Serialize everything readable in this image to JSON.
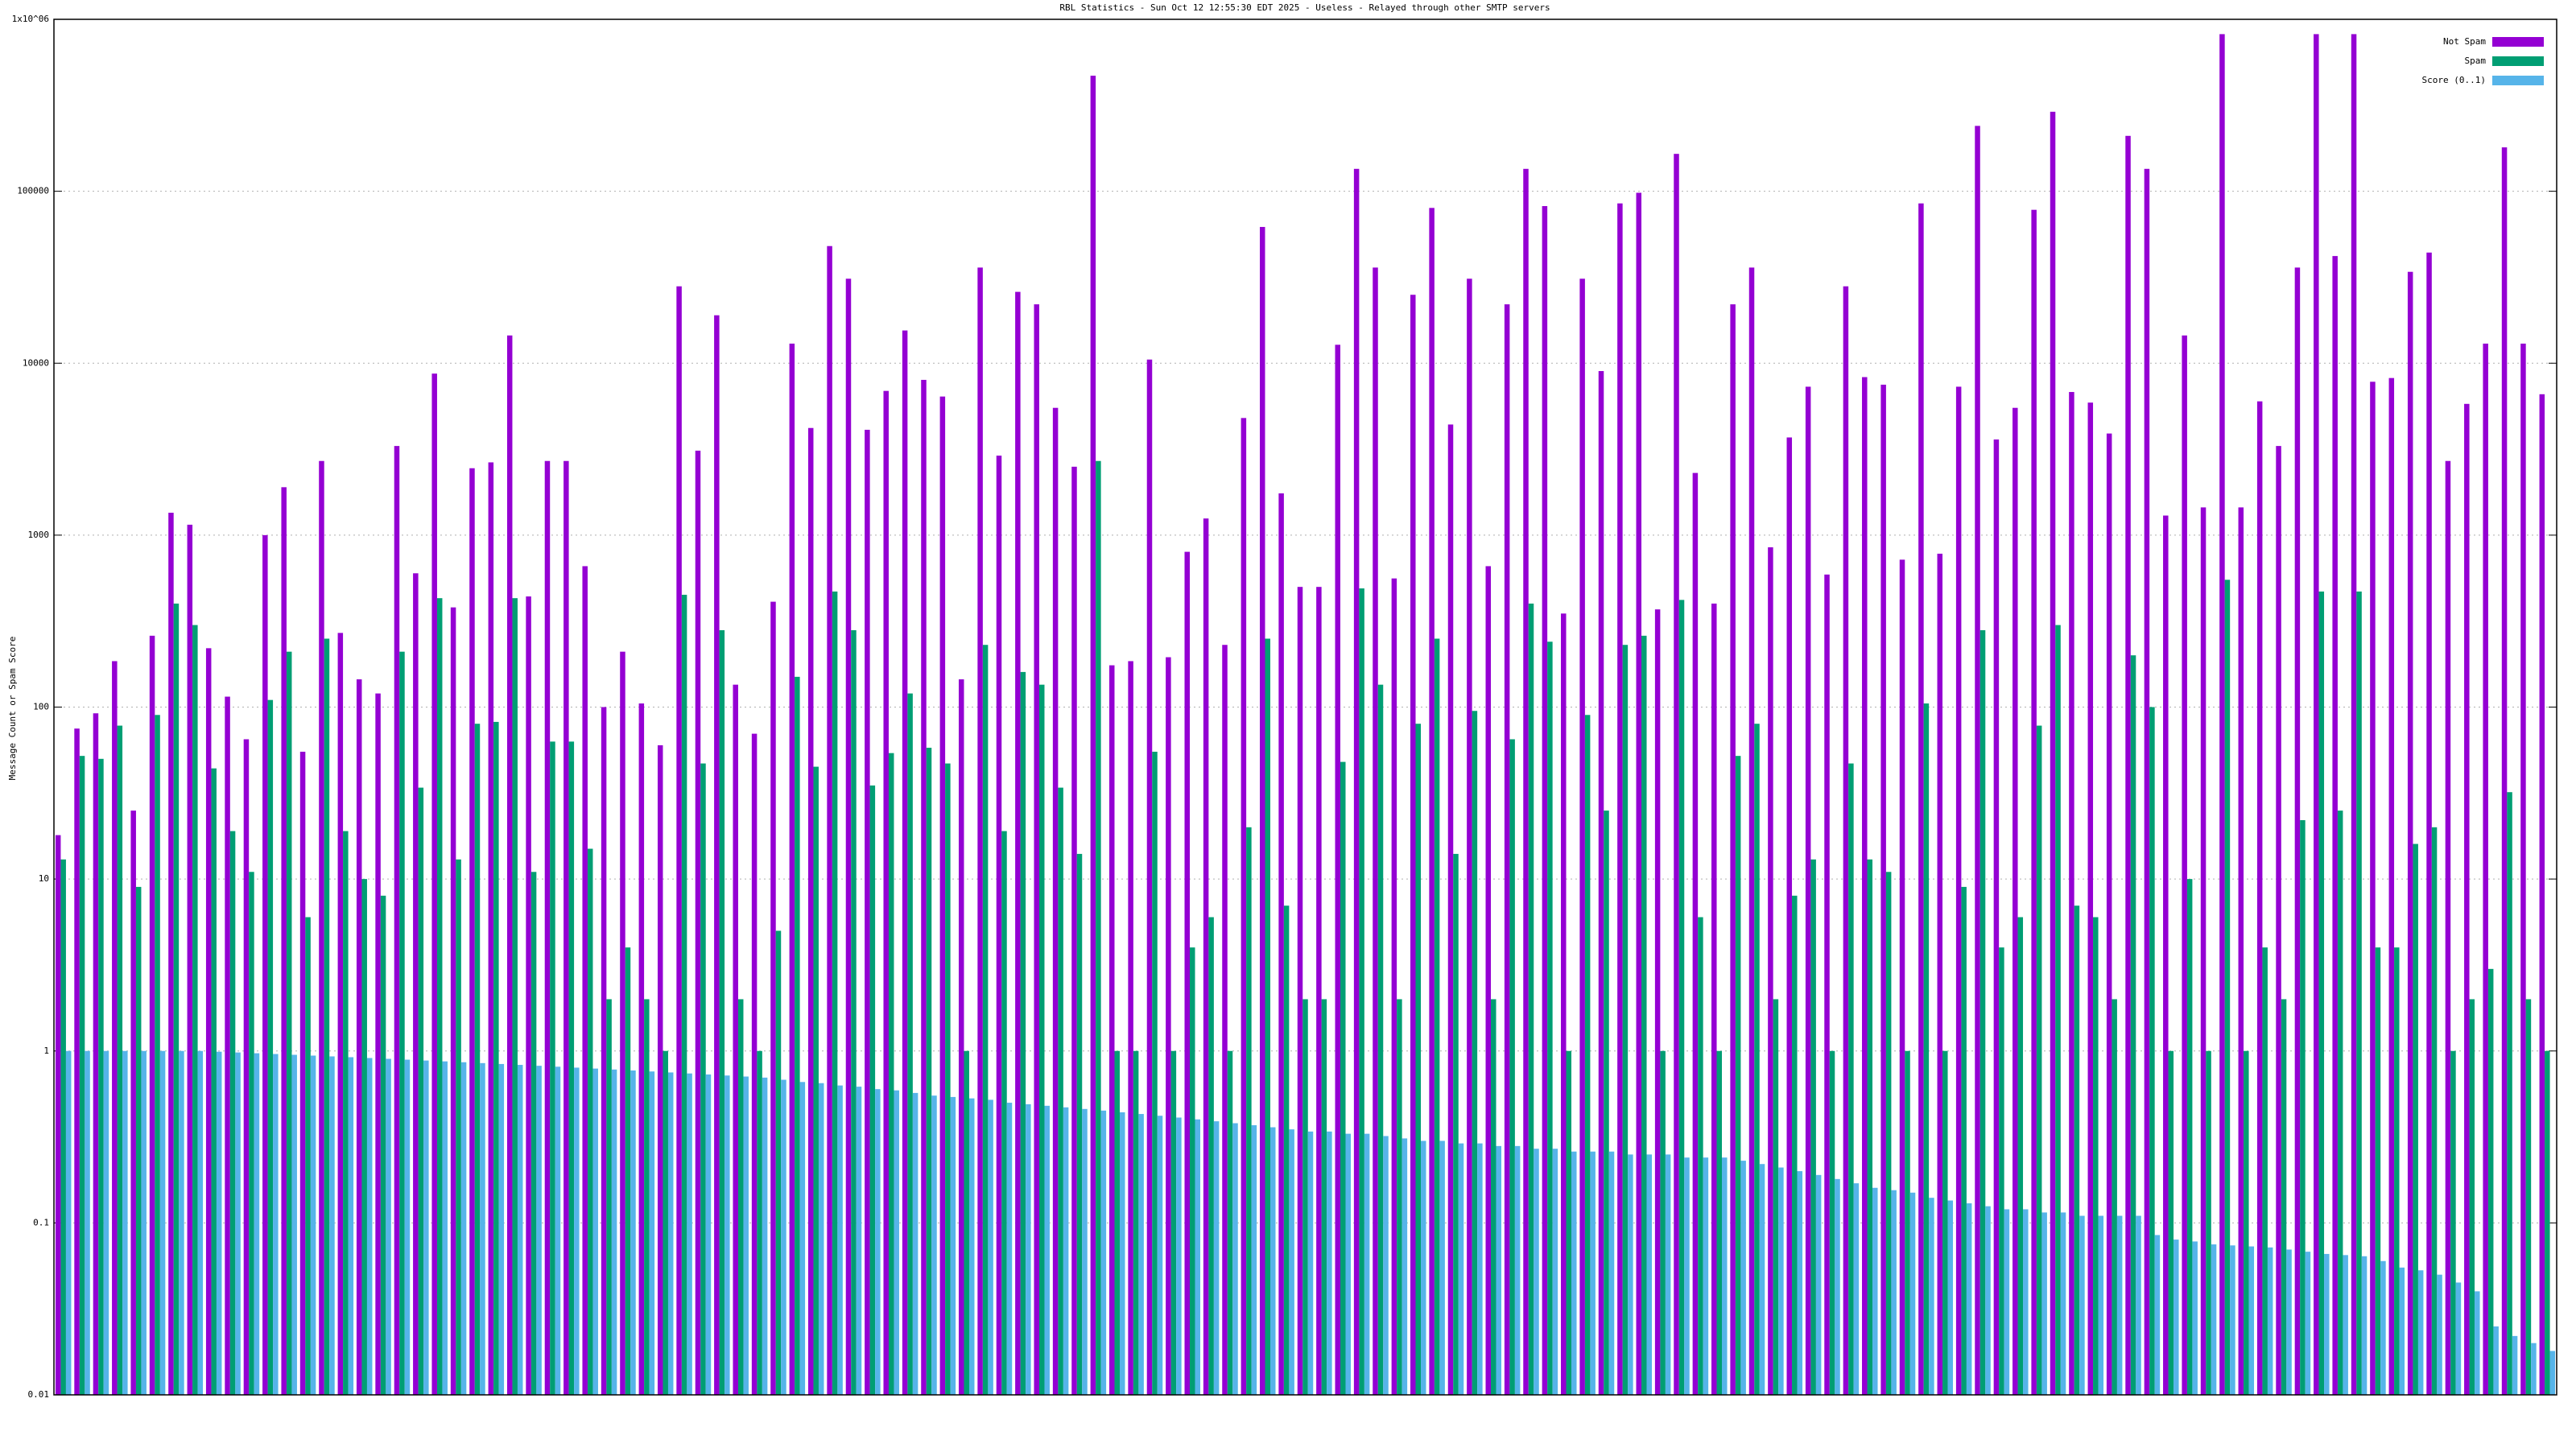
{
  "chart_data": {
    "type": "bar",
    "title": "RBL Statistics - Sun Oct 12 12:55:30 EDT 2025 - Useless - Relayed through other SMTP servers",
    "y_label": "Message Count or Spam Score",
    "log_y": true,
    "grid": true,
    "legend": "top-right",
    "ylim": [
      0.01,
      1000000
    ],
    "yticks": [
      0.01,
      0.1,
      1,
      10,
      100,
      1000,
      10000,
      100000,
      {
        "value": 1000000,
        "label": "1x10^06"
      }
    ],
    "categories": [
      null,
      null,
      null,
      null,
      null,
      null,
      null,
      null,
      null,
      null,
      null,
      null,
      null,
      null,
      null,
      null,
      null,
      null,
      null,
      null,
      null,
      null,
      null,
      null,
      null,
      null,
      null,
      null,
      null,
      null,
      null,
      null,
      null,
      null,
      null,
      null,
      null,
      null,
      null,
      null,
      null,
      null,
      null,
      null,
      null,
      null,
      null,
      null,
      null,
      null,
      null,
      null,
      null,
      null,
      null,
      null,
      null,
      null,
      null,
      null,
      null,
      null,
      null,
      null,
      null,
      null,
      null,
      null,
      null,
      null,
      null,
      null,
      null,
      null,
      null,
      null,
      null,
      null,
      null,
      null,
      null,
      null,
      null,
      null,
      null,
      null,
      null,
      null,
      null,
      null,
      null,
      null,
      null,
      null,
      null,
      null,
      null,
      null,
      null,
      null,
      null,
      null,
      null,
      null,
      null,
      null,
      null,
      null,
      null,
      null,
      null,
      null,
      null,
      null,
      null,
      null,
      null,
      null,
      null,
      null,
      null,
      null,
      null,
      null,
      null,
      null,
      null,
      null,
      null,
      null,
      null,
      null,
      null
    ],
    "series": [
      {
        "name": "Not Spam",
        "color": "#9400d3",
        "values": [
          18,
          75,
          92,
          185,
          25,
          260,
          1350,
          1150,
          220,
          115,
          65,
          1000,
          1900,
          55,
          2700,
          270,
          145,
          120,
          3300,
          600,
          8700,
          380,
          2450,
          2650,
          14500,
          440,
          2700,
          2700,
          660,
          100,
          210,
          105,
          60,
          28000,
          3100,
          19000,
          135,
          70,
          410,
          13000,
          4200,
          48000,
          31000,
          4100,
          6900,
          15500,
          8000,
          6400,
          145,
          36000,
          2900,
          26000,
          22000,
          5500,
          2500,
          470000,
          175,
          185,
          10500,
          195,
          800,
          1250,
          230,
          4800,
          62000,
          1750,
          500,
          500,
          12800,
          135000,
          36000,
          560,
          25000,
          80000,
          4400,
          31000,
          660,
          22000,
          135000,
          82000,
          350,
          31000,
          9000,
          85000,
          98000,
          370,
          165000,
          2300,
          400,
          22000,
          36000,
          850,
          3700,
          7300,
          590,
          28000,
          8300,
          7500,
          720,
          85000,
          780,
          7300,
          240000,
          3600,
          5500,
          78000,
          290000,
          6800,
          5900,
          3900,
          210000,
          135000,
          1300,
          14500,
          1450,
          820000,
          1450,
          6000,
          3300,
          36000,
          820000,
          42000,
          820000,
          7800,
          8200,
          34000,
          44000,
          2700,
          5800,
          13000,
          180000,
          13000,
          6600
        ]
      },
      {
        "name": "Spam",
        "color": "#009e73",
        "values": [
          13,
          52,
          50,
          78,
          9,
          90,
          400,
          300,
          44,
          19,
          11,
          110,
          210,
          6,
          250,
          19,
          10,
          8,
          210,
          34,
          430,
          13,
          80,
          82,
          430,
          11,
          63,
          63,
          15,
          2,
          4,
          2,
          1,
          450,
          47,
          280,
          2,
          1,
          5,
          150,
          45,
          470,
          280,
          35,
          54,
          120,
          58,
          47,
          1,
          230,
          19,
          160,
          135,
          34,
          14,
          2700,
          1,
          1,
          55,
          1,
          4,
          6,
          1,
          20,
          250,
          7,
          2,
          2,
          48,
          490,
          135,
          2,
          80,
          250,
          14,
          95,
          2,
          65,
          400,
          240,
          1,
          90,
          25,
          230,
          260,
          1,
          420,
          6,
          1,
          52,
          80,
          2,
          8,
          13,
          1,
          47,
          13,
          11,
          1,
          105,
          1,
          9,
          280,
          4,
          6,
          78,
          300,
          7,
          6,
          2,
          200,
          100,
          1,
          10,
          1,
          550,
          1,
          4,
          2,
          22,
          470,
          25,
          470,
          4,
          4,
          16,
          20,
          1,
          2,
          3,
          32,
          2,
          1
        ]
      },
      {
        "name": "Score (0..1)",
        "color": "#56b4e9",
        "values": [
          1,
          1,
          1,
          1,
          1,
          1,
          1,
          1,
          0.99,
          0.98,
          0.97,
          0.96,
          0.95,
          0.94,
          0.93,
          0.92,
          0.91,
          0.9,
          0.89,
          0.88,
          0.87,
          0.86,
          0.85,
          0.84,
          0.83,
          0.82,
          0.81,
          0.8,
          0.79,
          0.78,
          0.77,
          0.76,
          0.75,
          0.74,
          0.73,
          0.72,
          0.71,
          0.7,
          0.68,
          0.66,
          0.65,
          0.63,
          0.62,
          0.6,
          0.59,
          0.57,
          0.55,
          0.54,
          0.53,
          0.52,
          0.5,
          0.49,
          0.48,
          0.47,
          0.46,
          0.45,
          0.44,
          0.43,
          0.42,
          0.41,
          0.4,
          0.39,
          0.38,
          0.37,
          0.36,
          0.35,
          0.34,
          0.34,
          0.33,
          0.33,
          0.32,
          0.31,
          0.3,
          0.3,
          0.29,
          0.29,
          0.28,
          0.28,
          0.27,
          0.27,
          0.26,
          0.26,
          0.26,
          0.25,
          0.25,
          0.25,
          0.24,
          0.24,
          0.24,
          0.23,
          0.22,
          0.21,
          0.2,
          0.19,
          0.18,
          0.17,
          0.16,
          0.155,
          0.15,
          0.14,
          0.135,
          0.13,
          0.125,
          0.12,
          0.12,
          0.115,
          0.115,
          0.11,
          0.11,
          0.11,
          0.11,
          0.085,
          0.08,
          0.078,
          0.075,
          0.074,
          0.073,
          0.072,
          0.07,
          0.068,
          0.066,
          0.065,
          0.064,
          0.06,
          0.055,
          0.053,
          0.05,
          0.045,
          0.04,
          0.025,
          0.022,
          0.02,
          0.018
        ]
      }
    ]
  }
}
